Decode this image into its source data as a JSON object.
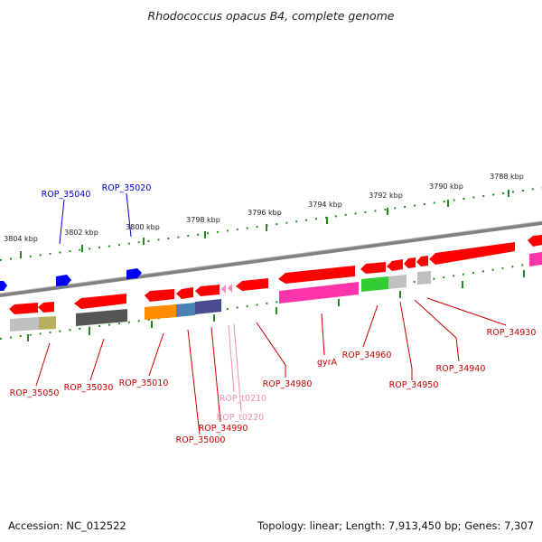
{
  "title": "Rhodococcus opacus B4, complete genome",
  "footer": {
    "accession": "Accession: NC_012522",
    "summary": "Topology: linear; Length: 7,913,450 bp; Genes: 7,307"
  },
  "scale_ticks": [
    "3804 kbp",
    "3802 kbp",
    "3800 kbp",
    "3798 kbp",
    "3796 kbp",
    "3794 kbp",
    "3792 kbp",
    "3790 kbp",
    "3788 kbp"
  ],
  "gene_labels": {
    "rop_35040": "ROP_35040",
    "rop_35020": "ROP_35020",
    "rop_35050": "ROP_35050",
    "rop_35030": "ROP_35030",
    "rop_35010": "ROP_35010",
    "rop_35000": "ROP_35000",
    "rop_34990": "ROP_34990",
    "rop_t0210": "ROP_t0210",
    "rop_t0220": "ROP_t0220",
    "rop_34980": "ROP_34980",
    "gyra": "gyrA",
    "rop_34960": "ROP_34960",
    "rop_34950": "ROP_34950",
    "rop_34940": "ROP_34940",
    "rop_34930": "ROP_34930"
  },
  "colors": {
    "backbone": "#808080",
    "tick_marks": "#228b22",
    "gene_forward": "#0000ff",
    "gene_reverse": "#ff0000",
    "label_red": "#cc0000",
    "label_blue": "#0000cc",
    "trna": "#f08cb8",
    "cog_magenta": "#ff33aa",
    "cog_green": "#33cc33",
    "cog_orange": "#ff8c00",
    "cog_steelblue": "#4682b4",
    "cog_slate": "#4b4b8f",
    "cog_gray": "#c0c0c0",
    "cog_darkgray": "#555555",
    "cog_olive": "#b8b060"
  }
}
